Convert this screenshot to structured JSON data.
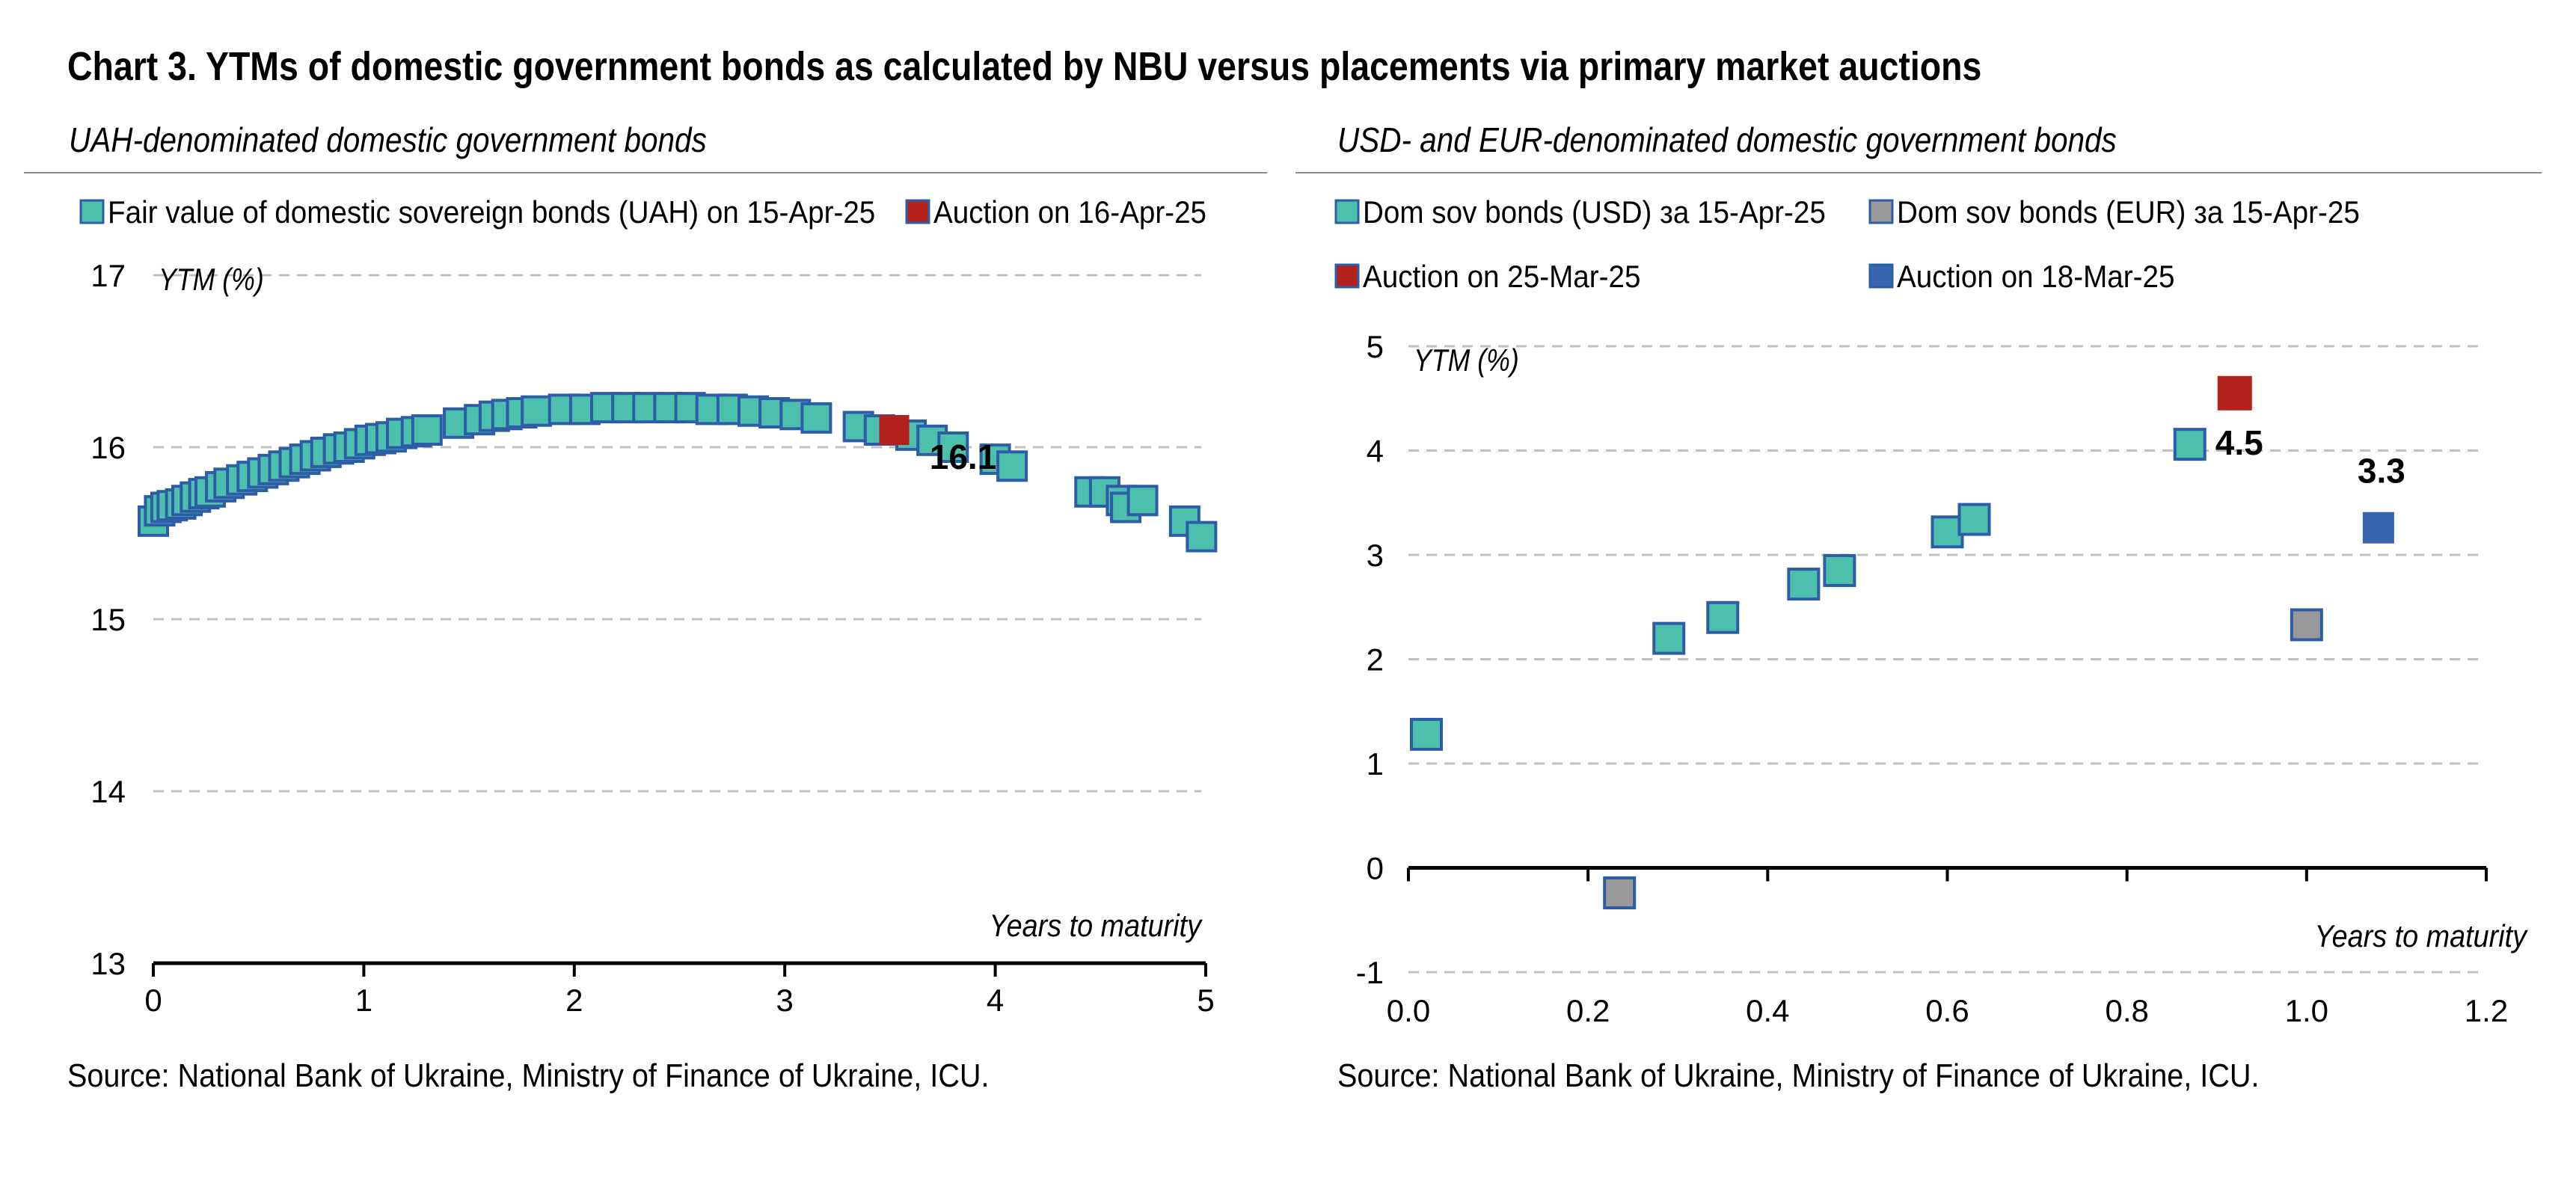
{
  "title": "Chart 3. YTMs of domestic government bonds as calculated by NBU versus placements via primary market auctions",
  "charts": [
    {
      "subtitle": "UAH-denominated domestic government bonds",
      "source": "Source: National Bank of Ukraine, Ministry of Finance of Ukraine, ICU."
    },
    {
      "subtitle": "USD- and EUR-denominated domestic government bonds",
      "source": "Source: National Bank of Ukraine, Ministry of Finance of Ukraine, ICU."
    }
  ],
  "colors": {
    "fair_fill": "#4dbfad",
    "marker_stroke": "#2e5da8",
    "eur_fill": "#999999",
    "auction_red": "#b3221d",
    "auction_blue": "#3866b0",
    "grid": "#c0c0c0",
    "axis": "#000000"
  },
  "chart_data": [
    {
      "type": "scatter",
      "title": "UAH-denominated domestic government bonds",
      "ylabel": "YTM (%)",
      "xlabel": "Years to maturity",
      "xlim": [
        0,
        5
      ],
      "ylim": [
        13,
        17
      ],
      "xticks": [
        "0",
        "1",
        "2",
        "3",
        "4",
        "5"
      ],
      "yticks": [
        "13",
        "14",
        "15",
        "16",
        "17"
      ],
      "grid": true,
      "legend_position": "top",
      "series": [
        {
          "name": "Fair value of domestic sovereign bonds (UAH) on 15-Apr-25",
          "color": "#4dbfad",
          "points": [
            [
              0.0,
              15.57
            ],
            [
              0.03,
              15.63
            ],
            [
              0.06,
              15.65
            ],
            [
              0.09,
              15.66
            ],
            [
              0.13,
              15.67
            ],
            [
              0.16,
              15.69
            ],
            [
              0.2,
              15.71
            ],
            [
              0.24,
              15.73
            ],
            [
              0.27,
              15.74
            ],
            [
              0.32,
              15.77
            ],
            [
              0.36,
              15.79
            ],
            [
              0.42,
              15.81
            ],
            [
              0.47,
              15.83
            ],
            [
              0.52,
              15.85
            ],
            [
              0.57,
              15.87
            ],
            [
              0.62,
              15.89
            ],
            [
              0.67,
              15.91
            ],
            [
              0.72,
              15.93
            ],
            [
              0.77,
              15.95
            ],
            [
              0.82,
              15.97
            ],
            [
              0.88,
              15.99
            ],
            [
              0.93,
              16.0
            ],
            [
              0.98,
              16.02
            ],
            [
              1.03,
              16.04
            ],
            [
              1.08,
              16.05
            ],
            [
              1.13,
              16.06
            ],
            [
              1.18,
              16.08
            ],
            [
              1.25,
              16.09
            ],
            [
              1.3,
              16.1
            ],
            [
              1.45,
              16.14
            ],
            [
              1.55,
              16.16
            ],
            [
              1.62,
              16.18
            ],
            [
              1.68,
              16.19
            ],
            [
              1.75,
              16.2
            ],
            [
              1.82,
              16.21
            ],
            [
              1.95,
              16.22
            ],
            [
              2.05,
              16.22
            ],
            [
              2.15,
              16.23
            ],
            [
              2.25,
              16.23
            ],
            [
              2.35,
              16.23
            ],
            [
              2.45,
              16.23
            ],
            [
              2.55,
              16.23
            ],
            [
              2.65,
              16.22
            ],
            [
              2.75,
              16.22
            ],
            [
              2.85,
              16.21
            ],
            [
              2.95,
              16.2
            ],
            [
              3.05,
              16.19
            ],
            [
              3.15,
              16.17
            ],
            [
              3.35,
              16.12
            ],
            [
              3.45,
              16.1
            ],
            [
              3.6,
              16.07
            ],
            [
              3.7,
              16.04
            ],
            [
              3.8,
              16.0
            ],
            [
              4.0,
              15.93
            ],
            [
              4.08,
              15.89
            ],
            [
              4.45,
              15.74
            ],
            [
              4.52,
              15.74
            ],
            [
              4.6,
              15.69
            ],
            [
              4.62,
              15.65
            ],
            [
              4.7,
              15.69
            ],
            [
              4.9,
              15.57
            ],
            [
              4.98,
              15.48
            ]
          ]
        },
        {
          "name": "Auction on 16-Apr-25",
          "color": "#b3221d",
          "points": [
            [
              3.52,
              16.1
            ]
          ],
          "labels": [
            "16.1"
          ]
        }
      ]
    },
    {
      "type": "scatter",
      "title": "USD- and EUR-denominated domestic government bonds",
      "ylabel": "YTM (%)",
      "xlabel": "Years to maturity",
      "xlim": [
        0.0,
        1.2
      ],
      "ylim": [
        -1,
        5
      ],
      "xticks": [
        "0.0",
        "0.2",
        "0.4",
        "0.6",
        "0.8",
        "1.0",
        "1.2"
      ],
      "yticks": [
        "-1",
        "0",
        "1",
        "2",
        "3",
        "4",
        "5"
      ],
      "grid": true,
      "legend_position": "top",
      "series": [
        {
          "name": "Dom sov bonds (USD) за 15-Apr-25",
          "color": "#4dbfad",
          "points": [
            [
              0.02,
              1.28
            ],
            [
              0.29,
              2.2
            ],
            [
              0.35,
              2.4
            ],
            [
              0.44,
              2.72
            ],
            [
              0.48,
              2.85
            ],
            [
              0.6,
              3.22
            ],
            [
              0.63,
              3.34
            ],
            [
              0.87,
              4.06
            ]
          ]
        },
        {
          "name": "Dom sov bonds (EUR) за 15-Apr-25",
          "color": "#999999",
          "points": [
            [
              0.235,
              -0.24
            ],
            [
              1.0,
              2.33
            ]
          ]
        },
        {
          "name": "Auction on 25-Mar-25",
          "color": "#b3221d",
          "points": [
            [
              0.92,
              4.55
            ]
          ],
          "labels": [
            "4.5"
          ]
        },
        {
          "name": "Auction on 18-Mar-25",
          "color": "#3866b0",
          "points": [
            [
              1.08,
              3.26
            ]
          ],
          "labels": [
            "3.3"
          ]
        }
      ]
    }
  ]
}
